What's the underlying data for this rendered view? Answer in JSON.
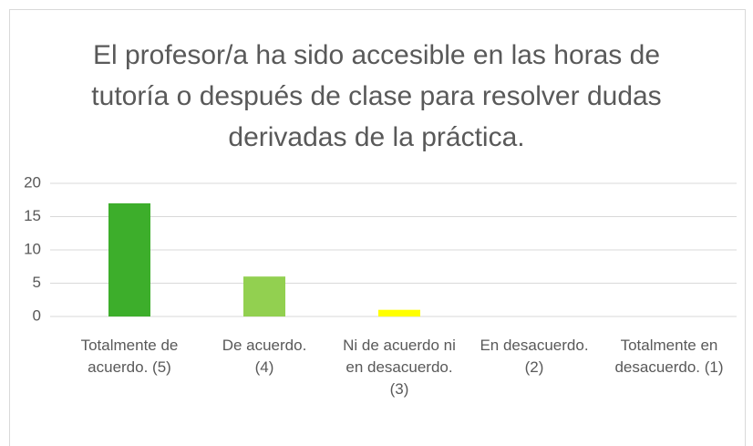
{
  "chart_data": {
    "type": "bar",
    "title": "El profesor/a ha sido accesible en las horas de tutoría o después de clase para resolver dudas derivadas de la práctica.",
    "categories": [
      "Totalmente de acuerdo. (5)",
      "De acuerdo. (4)",
      "Ni de acuerdo ni en desacuerdo. (3)",
      "En desacuerdo. (2)",
      "Totalmente en desacuerdo. (1)"
    ],
    "values": [
      17,
      6,
      1,
      0,
      0
    ],
    "colors": [
      "#3dae2b",
      "#92d050",
      "#ffff00",
      "#ffc000",
      "#ff0000"
    ],
    "ylim": [
      0,
      20
    ],
    "yticks": [
      0,
      5,
      10,
      15,
      20
    ],
    "grid": true
  }
}
